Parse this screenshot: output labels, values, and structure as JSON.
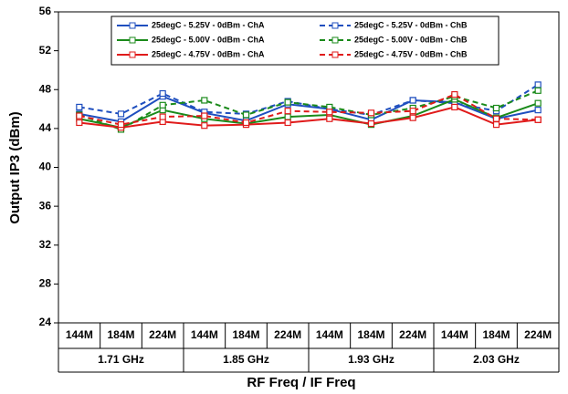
{
  "chart_data": {
    "type": "line",
    "x_label": "RF Freq / IF Freq",
    "y_label": "Output IP3 (dBm)",
    "categories": [
      "144M",
      "184M",
      "224M",
      "144M",
      "184M",
      "224M",
      "144M",
      "184M",
      "224M",
      "144M",
      "184M",
      "224M"
    ],
    "groups": [
      "1.71 GHz",
      "1.85 GHz",
      "1.93 GHz",
      "2.03 GHz"
    ],
    "ylim": [
      24,
      56
    ],
    "yticks": [
      24,
      28,
      32,
      36,
      40,
      44,
      48,
      52,
      56
    ],
    "grid": false,
    "legend": "top",
    "series": [
      {
        "name": "25degC - 5.25V - 0dBm - ChA",
        "color": "#1f4fbf",
        "dashed": false,
        "values": [
          45.5,
          44.7,
          47.3,
          45.6,
          44.8,
          46.5,
          46.0,
          44.9,
          46.9,
          46.7,
          45.0,
          45.9
        ]
      },
      {
        "name": "25degC - 5.25V - 0dBm - ChB",
        "color": "#1f4fbf",
        "dashed": true,
        "values": [
          46.2,
          45.5,
          47.6,
          45.7,
          45.5,
          46.8,
          46.0,
          45.4,
          46.9,
          46.6,
          45.8,
          48.5
        ]
      },
      {
        "name": "25degC - 5.00V - 0dBm - ChA",
        "color": "#1a8a1a",
        "dashed": false,
        "values": [
          45.0,
          44.1,
          45.9,
          45.0,
          44.5,
          45.2,
          45.4,
          44.4,
          45.3,
          47.0,
          45.1,
          46.6
        ]
      },
      {
        "name": "25degC - 5.00V - 0dBm - ChB",
        "color": "#1a8a1a",
        "dashed": true,
        "values": [
          45.4,
          43.9,
          46.4,
          46.9,
          45.4,
          46.7,
          46.2,
          45.4,
          46.1,
          47.3,
          46.1,
          47.9
        ]
      },
      {
        "name": "25degC - 4.75V - 0dBm - ChA",
        "color": "#e01b1b",
        "dashed": false,
        "values": [
          44.6,
          44.1,
          44.7,
          44.3,
          44.4,
          44.6,
          45.0,
          44.5,
          45.1,
          46.2,
          44.4,
          44.9
        ]
      },
      {
        "name": "25degC - 4.75V - 0dBm - ChB",
        "color": "#e01b1b",
        "dashed": true,
        "values": [
          45.3,
          44.4,
          45.2,
          45.3,
          44.6,
          45.8,
          45.7,
          45.6,
          45.8,
          47.5,
          45.0,
          44.9
        ]
      }
    ]
  }
}
